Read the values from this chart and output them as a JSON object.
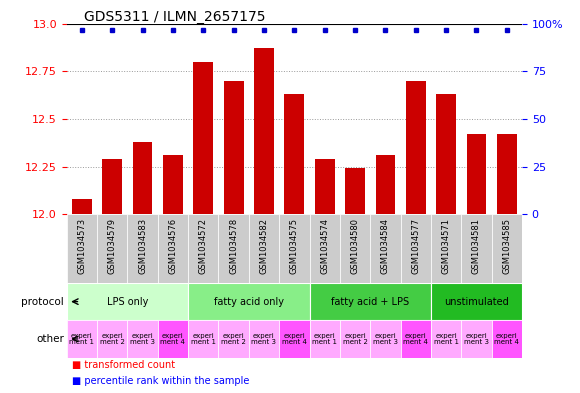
{
  "title": "GDS5311 / ILMN_2657175",
  "samples": [
    "GSM1034573",
    "GSM1034579",
    "GSM1034583",
    "GSM1034576",
    "GSM1034572",
    "GSM1034578",
    "GSM1034582",
    "GSM1034575",
    "GSM1034574",
    "GSM1034580",
    "GSM1034584",
    "GSM1034577",
    "GSM1034571",
    "GSM1034581",
    "GSM1034585"
  ],
  "bar_values": [
    12.08,
    12.29,
    12.38,
    12.31,
    12.8,
    12.7,
    12.87,
    12.63,
    12.29,
    12.24,
    12.31,
    12.7,
    12.63,
    12.42,
    12.42
  ],
  "bar_color": "#cc0000",
  "dot_color": "#0000cc",
  "ylim_left": [
    12.0,
    13.0
  ],
  "ylim_right": [
    0,
    100
  ],
  "yticks_left": [
    12.0,
    12.25,
    12.5,
    12.75,
    13.0
  ],
  "yticks_right": [
    0,
    25,
    50,
    75,
    100
  ],
  "protocols": [
    {
      "label": "LPS only",
      "start": 0,
      "end": 4,
      "color": "#ccffcc"
    },
    {
      "label": "fatty acid only",
      "start": 4,
      "end": 8,
      "color": "#88ee88"
    },
    {
      "label": "fatty acid + LPS",
      "start": 8,
      "end": 12,
      "color": "#44cc44"
    },
    {
      "label": "unstimulated",
      "start": 12,
      "end": 15,
      "color": "#22bb22"
    }
  ],
  "other_colors": [
    "#ffaaff",
    "#ffaaff",
    "#ffaaff",
    "#ff55ff",
    "#ffaaff",
    "#ffaaff",
    "#ffaaff",
    "#ff55ff",
    "#ffaaff",
    "#ffaaff",
    "#ffaaff",
    "#ff55ff",
    "#ffaaff",
    "#ffaaff",
    "#ff55ff"
  ],
  "other_labels": [
    "experi\nment 1",
    "experi\nment 2",
    "experi\nment 3",
    "experi\nment 4",
    "experi\nment 1",
    "experi\nment 2",
    "experi\nment 3",
    "experi\nment 4",
    "experi\nment 1",
    "experi\nment 2",
    "experi\nment 3",
    "experi\nment 4",
    "experi\nment 1",
    "experi\nment 3",
    "experi\nment 4"
  ],
  "legend_red": "transformed count",
  "legend_blue": "percentile rank within the sample",
  "grid_color": "#999999",
  "sample_bg_color": "#cccccc",
  "left_label_color": "#555555"
}
